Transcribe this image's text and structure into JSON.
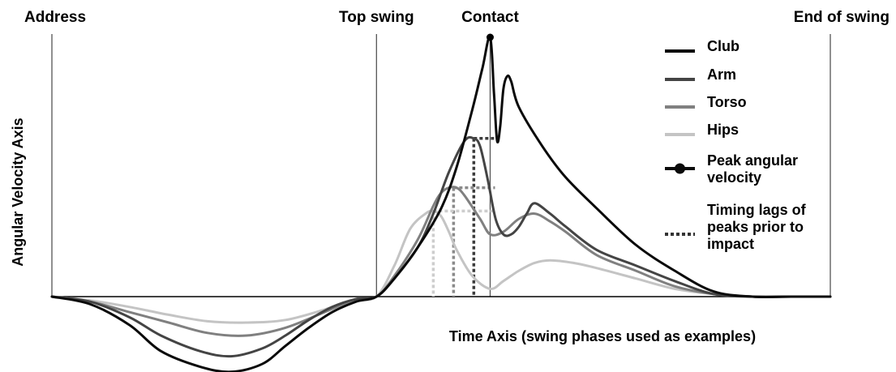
{
  "chart_data": {
    "type": "line",
    "title": "",
    "xlabel": "Time Axis (swing phases used as examples)",
    "ylabel": "Angular Velocity Axis",
    "phases": [
      {
        "name": "Address",
        "t": 0.0
      },
      {
        "name": "Top swing",
        "t": 0.417
      },
      {
        "name": "Contact",
        "t": 0.563
      },
      {
        "name": "End of swing",
        "t": 1.0
      }
    ],
    "x_range": [
      0,
      1
    ],
    "y_range": [
      -0.29,
      1.0
    ],
    "grid": false,
    "legend_position": "top-right",
    "series": [
      {
        "name": "Club",
        "color": "#0a0a0a",
        "width": 3,
        "x": [
          0.0,
          0.05,
          0.1,
          0.14,
          0.19,
          0.23,
          0.27,
          0.3,
          0.33,
          0.36,
          0.39,
          0.417,
          0.44,
          0.47,
          0.5,
          0.52,
          0.54,
          0.553,
          0.563,
          0.568,
          0.572,
          0.576,
          0.58,
          0.585,
          0.59,
          0.6,
          0.63,
          0.66,
          0.7,
          0.75,
          0.8,
          0.85,
          0.9,
          0.95,
          1.0
        ],
        "values": [
          0.0,
          -0.03,
          -0.11,
          -0.21,
          -0.27,
          -0.29,
          -0.26,
          -0.19,
          -0.12,
          -0.06,
          -0.02,
          0.0,
          0.07,
          0.19,
          0.34,
          0.5,
          0.72,
          0.88,
          1.0,
          0.78,
          0.6,
          0.66,
          0.8,
          0.85,
          0.83,
          0.73,
          0.58,
          0.46,
          0.34,
          0.2,
          0.1,
          0.02,
          0.0,
          0.0,
          0.0
        ]
      },
      {
        "name": "Arm",
        "color": "#444444",
        "width": 3,
        "x": [
          0.0,
          0.05,
          0.1,
          0.14,
          0.19,
          0.23,
          0.27,
          0.3,
          0.33,
          0.36,
          0.39,
          0.417,
          0.44,
          0.47,
          0.49,
          0.51,
          0.53,
          0.542,
          0.55,
          0.56,
          0.57,
          0.58,
          0.59,
          0.6,
          0.61,
          0.62,
          0.64,
          0.66,
          0.7,
          0.75,
          0.8,
          0.85,
          0.9,
          0.95,
          1.0
        ],
        "values": [
          0.0,
          -0.02,
          -0.08,
          -0.15,
          -0.21,
          -0.23,
          -0.2,
          -0.15,
          -0.09,
          -0.04,
          -0.01,
          0.0,
          0.07,
          0.19,
          0.32,
          0.48,
          0.6,
          0.61,
          0.58,
          0.45,
          0.3,
          0.24,
          0.24,
          0.27,
          0.32,
          0.36,
          0.32,
          0.27,
          0.18,
          0.12,
          0.06,
          0.01,
          0.0,
          0.0,
          0.0
        ]
      },
      {
        "name": "Torso",
        "color": "#808080",
        "width": 3,
        "x": [
          0.0,
          0.05,
          0.1,
          0.15,
          0.2,
          0.25,
          0.3,
          0.35,
          0.39,
          0.417,
          0.44,
          0.47,
          0.49,
          0.5,
          0.51,
          0.52,
          0.53,
          0.55,
          0.563,
          0.58,
          0.6,
          0.62,
          0.64,
          0.66,
          0.7,
          0.75,
          0.8,
          0.85,
          0.9,
          0.95,
          1.0
        ],
        "values": [
          0.0,
          -0.02,
          -0.06,
          -0.1,
          -0.14,
          -0.15,
          -0.12,
          -0.06,
          -0.01,
          0.0,
          0.08,
          0.22,
          0.35,
          0.4,
          0.42,
          0.42,
          0.39,
          0.3,
          0.24,
          0.25,
          0.3,
          0.32,
          0.29,
          0.25,
          0.16,
          0.1,
          0.04,
          0.01,
          0.0,
          0.0,
          0.0
        ]
      },
      {
        "name": "Hips",
        "color": "#c4c4c4",
        "width": 3,
        "x": [
          0.0,
          0.05,
          0.1,
          0.15,
          0.2,
          0.25,
          0.3,
          0.35,
          0.39,
          0.417,
          0.44,
          0.46,
          0.48,
          0.49,
          0.5,
          0.51,
          0.52,
          0.54,
          0.563,
          0.58,
          0.6,
          0.62,
          0.64,
          0.67,
          0.7,
          0.75,
          0.8,
          0.85,
          0.9,
          0.95,
          1.0
        ],
        "values": [
          0.0,
          -0.015,
          -0.04,
          -0.07,
          -0.095,
          -0.1,
          -0.09,
          -0.05,
          -0.01,
          0.0,
          0.12,
          0.26,
          0.32,
          0.33,
          0.31,
          0.25,
          0.18,
          0.08,
          0.03,
          0.06,
          0.1,
          0.13,
          0.14,
          0.13,
          0.11,
          0.07,
          0.03,
          0.01,
          0.0,
          0.0,
          0.0
        ]
      }
    ],
    "peak_marker": {
      "series": "Club",
      "x": 0.563,
      "y": 1.0
    },
    "timing_lags": [
      {
        "series": "Arm",
        "color": "#3c3c3c",
        "x": 0.542,
        "y": 0.61
      },
      {
        "series": "Torso",
        "color": "#8a8a8a",
        "x": 0.516,
        "y": 0.42
      },
      {
        "series": "Hips",
        "color": "#cdcdcd",
        "x": 0.49,
        "y": 0.33
      }
    ],
    "legend": [
      {
        "label": "Club",
        "kind": "line",
        "color": "#0a0a0a"
      },
      {
        "label": "Arm",
        "kind": "line",
        "color": "#444444"
      },
      {
        "label": "Torso",
        "kind": "line",
        "color": "#808080"
      },
      {
        "label": "Hips",
        "kind": "line",
        "color": "#c4c4c4"
      },
      {
        "label": "Peak angular\nvelocity",
        "kind": "marker",
        "color": "#0a0a0a"
      },
      {
        "label": "Timing lags of\npeaks prior to\nimpact",
        "kind": "dotted",
        "color": "#333333"
      }
    ]
  }
}
